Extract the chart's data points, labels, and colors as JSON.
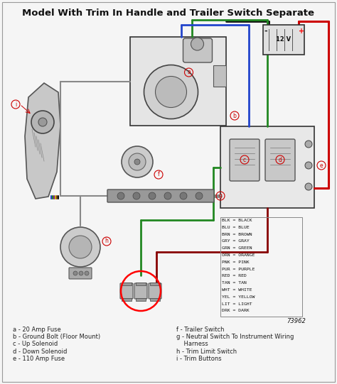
{
  "title": "Model With Trim In Handle and Trailer Switch Separate",
  "title_fontsize": 9.5,
  "background_color": "#f5f5f5",
  "figsize": [
    4.74,
    5.41
  ],
  "dpi": 100,
  "legend_items": [
    [
      "BLK",
      "BLACK"
    ],
    [
      "BLU",
      "BLUE"
    ],
    [
      "BRN",
      "BROWN"
    ],
    [
      "GRY",
      "GRAY"
    ],
    [
      "GRN",
      "GREEN"
    ],
    [
      "ORN",
      "ORANGE"
    ],
    [
      "PNK",
      "PINK"
    ],
    [
      "PUR",
      "PURPLE"
    ],
    [
      "RED",
      "RED"
    ],
    [
      "TAN",
      "TAN"
    ],
    [
      "WHT",
      "WHITE"
    ],
    [
      "YEL",
      "YELLOW"
    ],
    [
      "LIT",
      "LIGHT"
    ],
    [
      "DRK",
      "DARK"
    ]
  ],
  "part_labels_left": [
    "a - 20 Amp Fuse",
    "b - Ground Bolt (Floor Mount)",
    "c - Up Solenoid",
    "d - Down Solenoid",
    "e - 110 Amp Fuse"
  ],
  "part_labels_right": [
    "f - Trailer Switch",
    "g - Neutral Switch To Instrument Wiring",
    "    Harness",
    "h - Trim Limit Switch",
    "i - Trim Buttons"
  ],
  "diagram_number": "73962",
  "wire_colors": {
    "red": "#cc0000",
    "green": "#228822",
    "blue": "#2244cc",
    "black": "#111111",
    "yellow": "#ccaa00",
    "purple": "#882288",
    "brown": "#774422",
    "gray": "#888888",
    "darkred": "#880000"
  },
  "component_color": "#444444",
  "label_color": "#cc0000",
  "text_color": "#222222"
}
